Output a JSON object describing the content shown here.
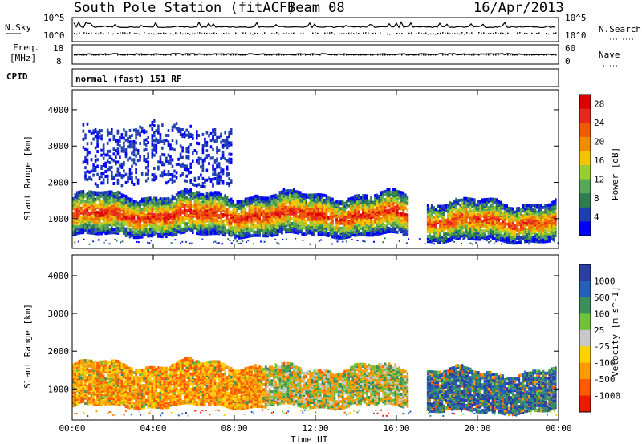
{
  "header": {
    "station": "South Pole Station (fitACF)",
    "beam": "Beam 08",
    "date": "16/Apr/2013"
  },
  "noise_panel": {
    "left_label": "N.Sky",
    "right_label": "N.Search",
    "left_ticks": [
      "10^5",
      "10^0"
    ],
    "right_ticks": [
      "10^5",
      "10^0"
    ]
  },
  "freq_panel": {
    "left_label_1": "Freq.",
    "left_label_2": "[MHz]",
    "right_label": "Nave",
    "left_ticks": [
      "18",
      "8"
    ],
    "right_ticks": [
      "60",
      "0"
    ]
  },
  "cpid_panel": {
    "label": "CPID",
    "text": "normal (fast) 151 RF"
  },
  "colors": {
    "power": [
      "#0000ff",
      "#1f3fb0",
      "#2e7d4f",
      "#55a855",
      "#9acd32",
      "#f5c400",
      "#f08c00",
      "#f05a00",
      "#e8281e",
      "#dd0000"
    ],
    "velocity": [
      "#2a3fa0",
      "#2460b8",
      "#3b8f5a",
      "#6fc23a",
      "#c8c8c8",
      "#ffd200",
      "#ff9a00",
      "#ff5a00",
      "#ee1a00"
    ]
  },
  "chart_data": [
    {
      "type": "heatmap",
      "name": "power",
      "ylabel": "Slant Range [km]",
      "xlabel": "",
      "ylim": [
        180,
        4550
      ],
      "xlim": [
        0,
        24
      ],
      "y_ticks": [
        "1000",
        "2000",
        "3000",
        "4000"
      ],
      "x_ticks": [
        "00:00",
        "04:00",
        "08:00",
        "12:00",
        "16:00",
        "20:00",
        "00:00"
      ],
      "colorbar": {
        "label": "Power [dB]",
        "ticks": [
          "4",
          "8",
          "12",
          "16",
          "20",
          "24",
          "28"
        ],
        "range": [
          0,
          30
        ]
      },
      "echo_regions": [
        {
          "t": [
            0,
            16.5
          ],
          "range_km": [
            600,
            1700
          ],
          "peak_db": 28
        },
        {
          "t": [
            17.5,
            24
          ],
          "range_km": [
            450,
            1500
          ],
          "peak_db": 26
        },
        {
          "t": [
            0.5,
            7.8
          ],
          "range_km": [
            2000,
            3600
          ],
          "peak_db": 6
        }
      ]
    },
    {
      "type": "heatmap",
      "name": "velocity",
      "ylabel": "Slant Range [km]",
      "xlabel": "Time UT",
      "ylim": [
        180,
        4550
      ],
      "xlim": [
        0,
        24
      ],
      "y_ticks": [
        "1000",
        "2000",
        "3000",
        "4000"
      ],
      "x_ticks": [
        "00:00",
        "04:00",
        "08:00",
        "12:00",
        "16:00",
        "20:00",
        "00:00"
      ],
      "colorbar": {
        "label": "Velocity [m s^-1]",
        "ticks": [
          "1000",
          "500",
          "100",
          "25",
          "-25",
          "-100",
          "-500",
          "-1000"
        ]
      },
      "echo_regions": [
        {
          "t": [
            0,
            9.5
          ],
          "range_km": [
            600,
            1700
          ],
          "velocity_ms": -300
        },
        {
          "t": [
            9.5,
            16.5
          ],
          "range_km": [
            600,
            1600
          ],
          "velocity_ms": 200
        },
        {
          "t": [
            17.5,
            24
          ],
          "range_km": [
            450,
            1500
          ],
          "velocity_ms": 700
        }
      ]
    }
  ]
}
